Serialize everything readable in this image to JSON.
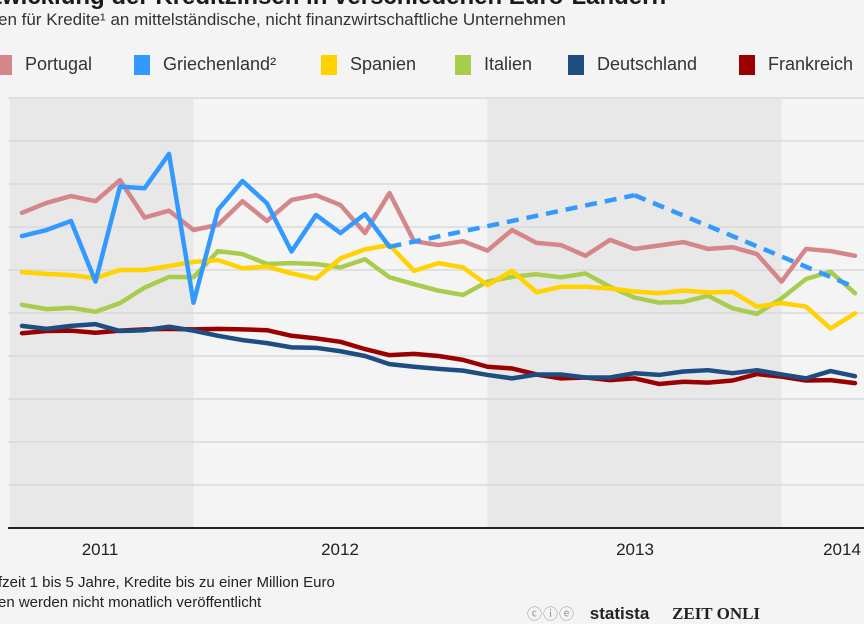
{
  "title": "twicklung der Kreditzinsen in verschiedenen Euro-Ländern",
  "subtitle": "en für Kredite¹ an mittelständische, nicht finanzwirtschaftliche Unternehmen",
  "footnotes": [
    "fzeit 1 bis 5 Jahre, Kredite bis zu einer Million Euro",
    "en werden nicht monatlich veröffentlicht"
  ],
  "logos": {
    "cc": "ⓒⓘⓔ",
    "statista": "statista",
    "zeit": "ZEIT ONLI"
  },
  "chart_data": {
    "type": "line",
    "title": "twicklung der Kreditzinsen in verschiedenen Euro-Ländern",
    "xlabel": "",
    "ylabel": "",
    "ylim": [
      0,
      10
    ],
    "grid": true,
    "legend_position": "top",
    "year_labels": [
      "2011",
      "2012",
      "2013",
      "2014"
    ],
    "shaded_years": [
      "2011",
      "2013"
    ],
    "x": [
      "2011-06",
      "2011-07",
      "2011-08",
      "2011-09",
      "2011-10",
      "2011-11",
      "2011-12",
      "2012-01",
      "2012-02",
      "2012-03",
      "2012-04",
      "2012-05",
      "2012-06",
      "2012-07",
      "2012-08",
      "2012-09",
      "2012-10",
      "2012-11",
      "2012-12",
      "2013-01",
      "2013-02",
      "2013-03",
      "2013-04",
      "2013-05",
      "2013-06",
      "2013-07",
      "2013-08",
      "2013-09",
      "2013-10",
      "2013-11",
      "2013-12",
      "2014-01",
      "2014-02",
      "2014-03",
      "2014-04"
    ],
    "series": [
      {
        "name": "Portugal",
        "color": "#d4868a",
        "values": [
          7.33,
          7.56,
          7.72,
          7.6,
          8.09,
          7.22,
          7.38,
          6.93,
          7.05,
          7.6,
          7.14,
          7.63,
          7.74,
          7.51,
          6.86,
          7.79,
          6.67,
          6.58,
          6.67,
          6.45,
          6.93,
          6.63,
          6.58,
          6.33,
          6.7,
          6.49,
          6.57,
          6.65,
          6.49,
          6.53,
          6.37,
          5.73,
          6.49,
          6.44,
          6.33
        ]
      },
      {
        "name": "Griechenland²",
        "color": "#3399ff",
        "gaps": "dashed",
        "values": [
          6.79,
          6.93,
          7.14,
          5.73,
          7.94,
          7.9,
          8.7,
          5.24,
          7.4,
          8.07,
          7.55,
          6.43,
          7.28,
          6.86,
          7.3,
          6.54,
          null,
          null,
          null,
          null,
          null,
          null,
          null,
          null,
          null,
          7.74,
          null,
          null,
          null,
          null,
          null,
          null,
          null,
          null,
          5.6
        ]
      },
      {
        "name": "Spanien",
        "color": "#ffd200",
        "values": [
          5.95,
          5.91,
          5.88,
          5.81,
          6.0,
          6.0,
          6.09,
          6.19,
          6.23,
          6.04,
          6.08,
          5.92,
          5.8,
          6.27,
          6.48,
          6.58,
          5.98,
          6.16,
          6.06,
          5.65,
          5.98,
          5.48,
          5.61,
          5.61,
          5.57,
          5.5,
          5.46,
          5.52,
          5.48,
          5.49,
          5.15,
          5.23,
          5.15,
          4.64,
          4.99
        ]
      },
      {
        "name": "Italien",
        "color": "#a8cc4e",
        "values": [
          5.19,
          5.09,
          5.12,
          5.03,
          5.23,
          5.59,
          5.84,
          5.83,
          6.44,
          6.37,
          6.14,
          6.16,
          6.14,
          6.06,
          6.25,
          5.83,
          5.67,
          5.52,
          5.42,
          5.73,
          5.84,
          5.9,
          5.83,
          5.92,
          5.61,
          5.36,
          5.24,
          5.26,
          5.4,
          5.11,
          4.98,
          5.34,
          5.79,
          5.96,
          5.46
        ]
      },
      {
        "name": "Deutschland",
        "color": "#1e4d82",
        "values": [
          4.7,
          4.63,
          4.7,
          4.74,
          4.58,
          4.6,
          4.68,
          4.59,
          4.47,
          4.37,
          4.3,
          4.2,
          4.19,
          4.11,
          4.0,
          3.81,
          3.75,
          3.7,
          3.66,
          3.56,
          3.48,
          3.57,
          3.57,
          3.5,
          3.5,
          3.6,
          3.56,
          3.64,
          3.67,
          3.6,
          3.67,
          3.57,
          3.48,
          3.65,
          3.53
        ]
      },
      {
        "name": "Frankreich",
        "color": "#9b0000",
        "values": [
          4.53,
          4.58,
          4.59,
          4.54,
          4.59,
          4.62,
          4.63,
          4.62,
          4.63,
          4.62,
          4.6,
          4.47,
          4.41,
          4.33,
          4.16,
          4.02,
          4.05,
          4.0,
          3.91,
          3.75,
          3.71,
          3.57,
          3.48,
          3.5,
          3.44,
          3.48,
          3.35,
          3.4,
          3.38,
          3.43,
          3.58,
          3.52,
          3.43,
          3.44,
          3.37
        ]
      }
    ]
  }
}
